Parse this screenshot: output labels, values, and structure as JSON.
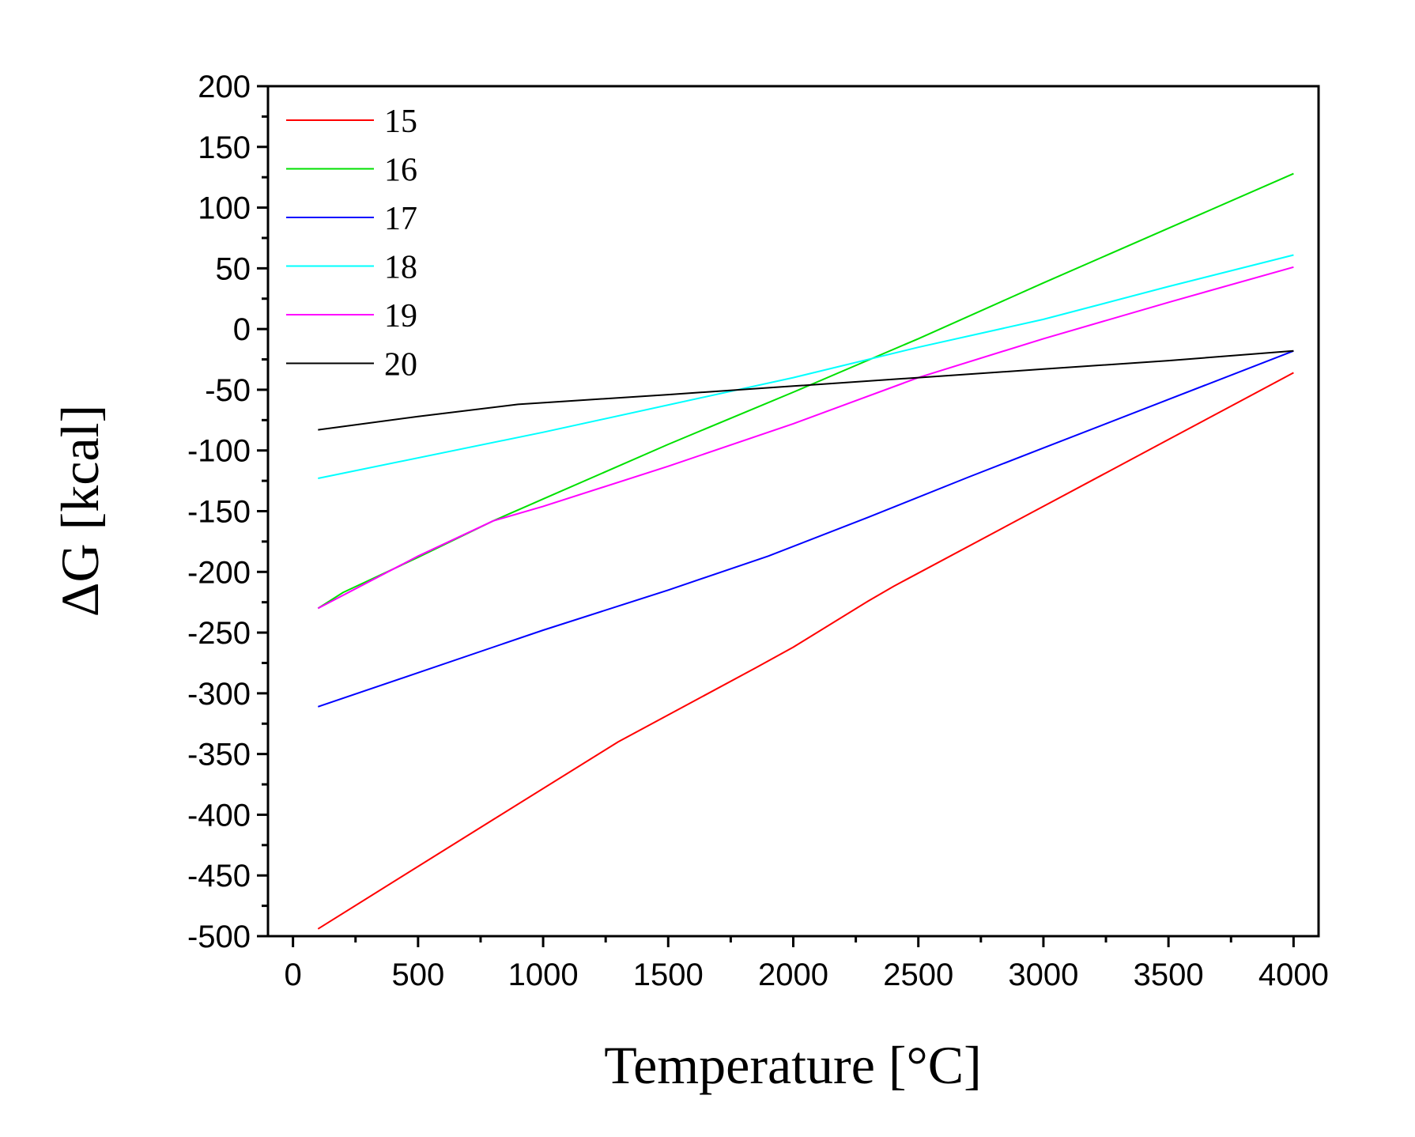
{
  "chart_data": {
    "type": "line",
    "xlabel": "Temperature [°C]",
    "ylabel": "ΔG [kcal]",
    "xlim": [
      -100,
      4100
    ],
    "ylim": [
      -500,
      200
    ],
    "xticks": [
      0,
      500,
      1000,
      1500,
      2000,
      2500,
      3000,
      3500,
      4000
    ],
    "yticks": [
      200,
      150,
      100,
      50,
      0,
      -50,
      -100,
      -150,
      -200,
      -250,
      -300,
      -350,
      -400,
      -450,
      -500
    ],
    "xtick_labels": [
      "0",
      "500",
      "1000",
      "1500",
      "2000",
      "2500",
      "3000",
      "3500",
      "4000"
    ],
    "ytick_labels": [
      "200",
      "150",
      "100",
      "50",
      "0",
      "-50",
      "-100",
      "-150",
      "-200",
      "-250",
      "-300",
      "-350",
      "-400",
      "-450",
      "-500"
    ],
    "legend_position": "top-left",
    "grid": false,
    "series": [
      {
        "name": "15",
        "color": "#ff0000",
        "x": [
          100,
          800,
          1300,
          1850,
          2000,
          2300,
          2400,
          3000,
          3500,
          4000
        ],
        "y": [
          -494,
          -404,
          -340,
          -279,
          -262,
          -224,
          -212,
          -146,
          -91,
          -36
        ]
      },
      {
        "name": "16",
        "color": "#00e000",
        "x": [
          100,
          200,
          500,
          800,
          1000,
          1500,
          2000,
          2500,
          3000,
          3500,
          4000
        ],
        "y": [
          -230,
          -217,
          -188,
          -158,
          -140,
          -95,
          -52,
          -8,
          38,
          83,
          128
        ]
      },
      {
        "name": "17",
        "color": "#0000ff",
        "x": [
          100,
          500,
          1000,
          1500,
          1900,
          2300,
          2700,
          3000,
          3500,
          4000
        ],
        "y": [
          -311,
          -283,
          -248,
          -215,
          -187,
          -155,
          -122,
          -98,
          -58,
          -18
        ]
      },
      {
        "name": "18",
        "color": "#00ffff",
        "x": [
          100,
          1000,
          2000,
          2500,
          3000,
          3500,
          4000
        ],
        "y": [
          -123,
          -85,
          -40,
          -15,
          8,
          35,
          61
        ]
      },
      {
        "name": "19",
        "color": "#ff00ff",
        "x": [
          100,
          500,
          800,
          1000,
          1500,
          2000,
          2500,
          3000,
          3500,
          4000
        ],
        "y": [
          -230,
          -187,
          -158,
          -146,
          -113,
          -78,
          -40,
          -8,
          22,
          51
        ]
      },
      {
        "name": "20",
        "color": "#000000",
        "x": [
          100,
          500,
          900,
          1500,
          2000,
          2500,
          3000,
          3500,
          4000
        ],
        "y": [
          -83,
          -72,
          -62,
          -54,
          -47,
          -40,
          -33,
          -26,
          -18
        ]
      }
    ]
  }
}
